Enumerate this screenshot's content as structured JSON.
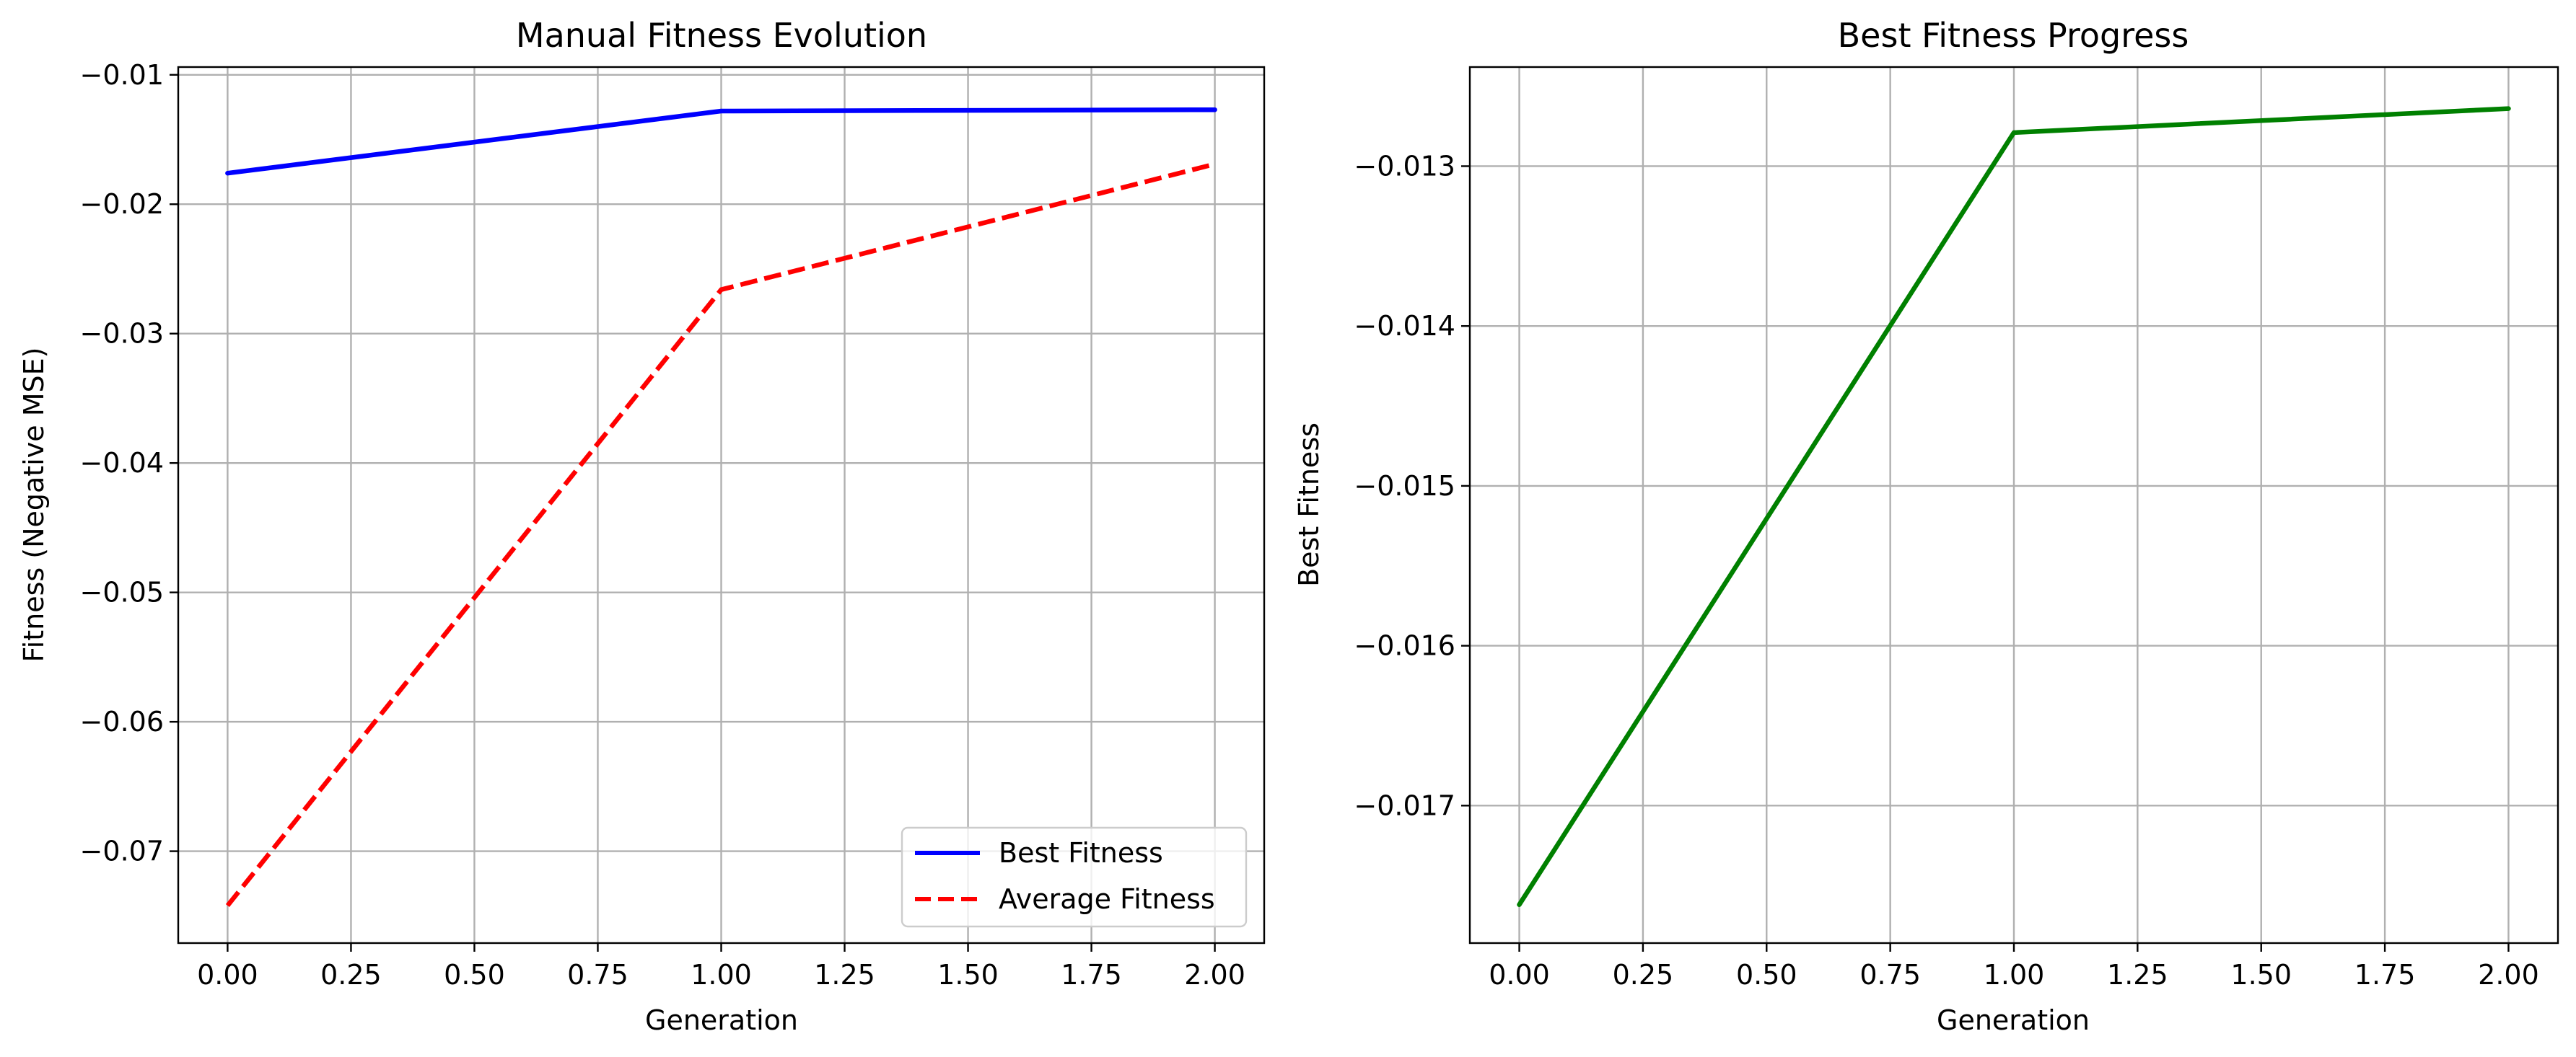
{
  "chart_data": [
    {
      "type": "line",
      "title": "Manual Fitness Evolution",
      "xlabel": "Generation",
      "ylabel": "Fitness (Negative MSE)",
      "xlim": [
        -0.1,
        2.1
      ],
      "ylim": [
        -0.0771,
        -0.0094
      ],
      "xticks": [
        0.0,
        0.25,
        0.5,
        0.75,
        1.0,
        1.25,
        1.5,
        1.75,
        2.0
      ],
      "xtick_labels": [
        "0.00",
        "0.25",
        "0.50",
        "0.75",
        "1.00",
        "1.25",
        "1.50",
        "1.75",
        "2.00"
      ],
      "yticks": [
        -0.07,
        -0.06,
        -0.05,
        -0.04,
        -0.03,
        -0.02,
        -0.01
      ],
      "ytick_labels": [
        "−0.07",
        "−0.06",
        "−0.05",
        "−0.04",
        "−0.03",
        "−0.02",
        "−0.01"
      ],
      "grid": true,
      "legend_position": "lower-right",
      "x": [
        0,
        1,
        2
      ],
      "series": [
        {
          "name": "Best Fitness",
          "values": [
            -0.0176,
            -0.0128,
            -0.0127
          ],
          "color": "#0000ff",
          "style": "solid"
        },
        {
          "name": "Average Fitness",
          "values": [
            -0.0742,
            -0.0266,
            -0.0169
          ],
          "color": "#ff0000",
          "style": "dashed"
        }
      ]
    },
    {
      "type": "line",
      "title": "Best Fitness Progress",
      "xlabel": "Generation",
      "ylabel": "Best Fitness",
      "xlim": [
        -0.1,
        2.1
      ],
      "ylim": [
        -0.01786,
        -0.01238
      ],
      "xticks": [
        0.0,
        0.25,
        0.5,
        0.75,
        1.0,
        1.25,
        1.5,
        1.75,
        2.0
      ],
      "xtick_labels": [
        "0.00",
        "0.25",
        "0.50",
        "0.75",
        "1.00",
        "1.25",
        "1.50",
        "1.75",
        "2.00"
      ],
      "yticks": [
        -0.017,
        -0.016,
        -0.015,
        -0.014,
        -0.013
      ],
      "ytick_labels": [
        "−0.017",
        "−0.016",
        "−0.015",
        "−0.014",
        "−0.013"
      ],
      "grid": true,
      "x": [
        0,
        1,
        2
      ],
      "series": [
        {
          "values": [
            -0.01762,
            -0.01279,
            -0.01264
          ],
          "color": "#008000",
          "style": "solid"
        }
      ]
    }
  ]
}
